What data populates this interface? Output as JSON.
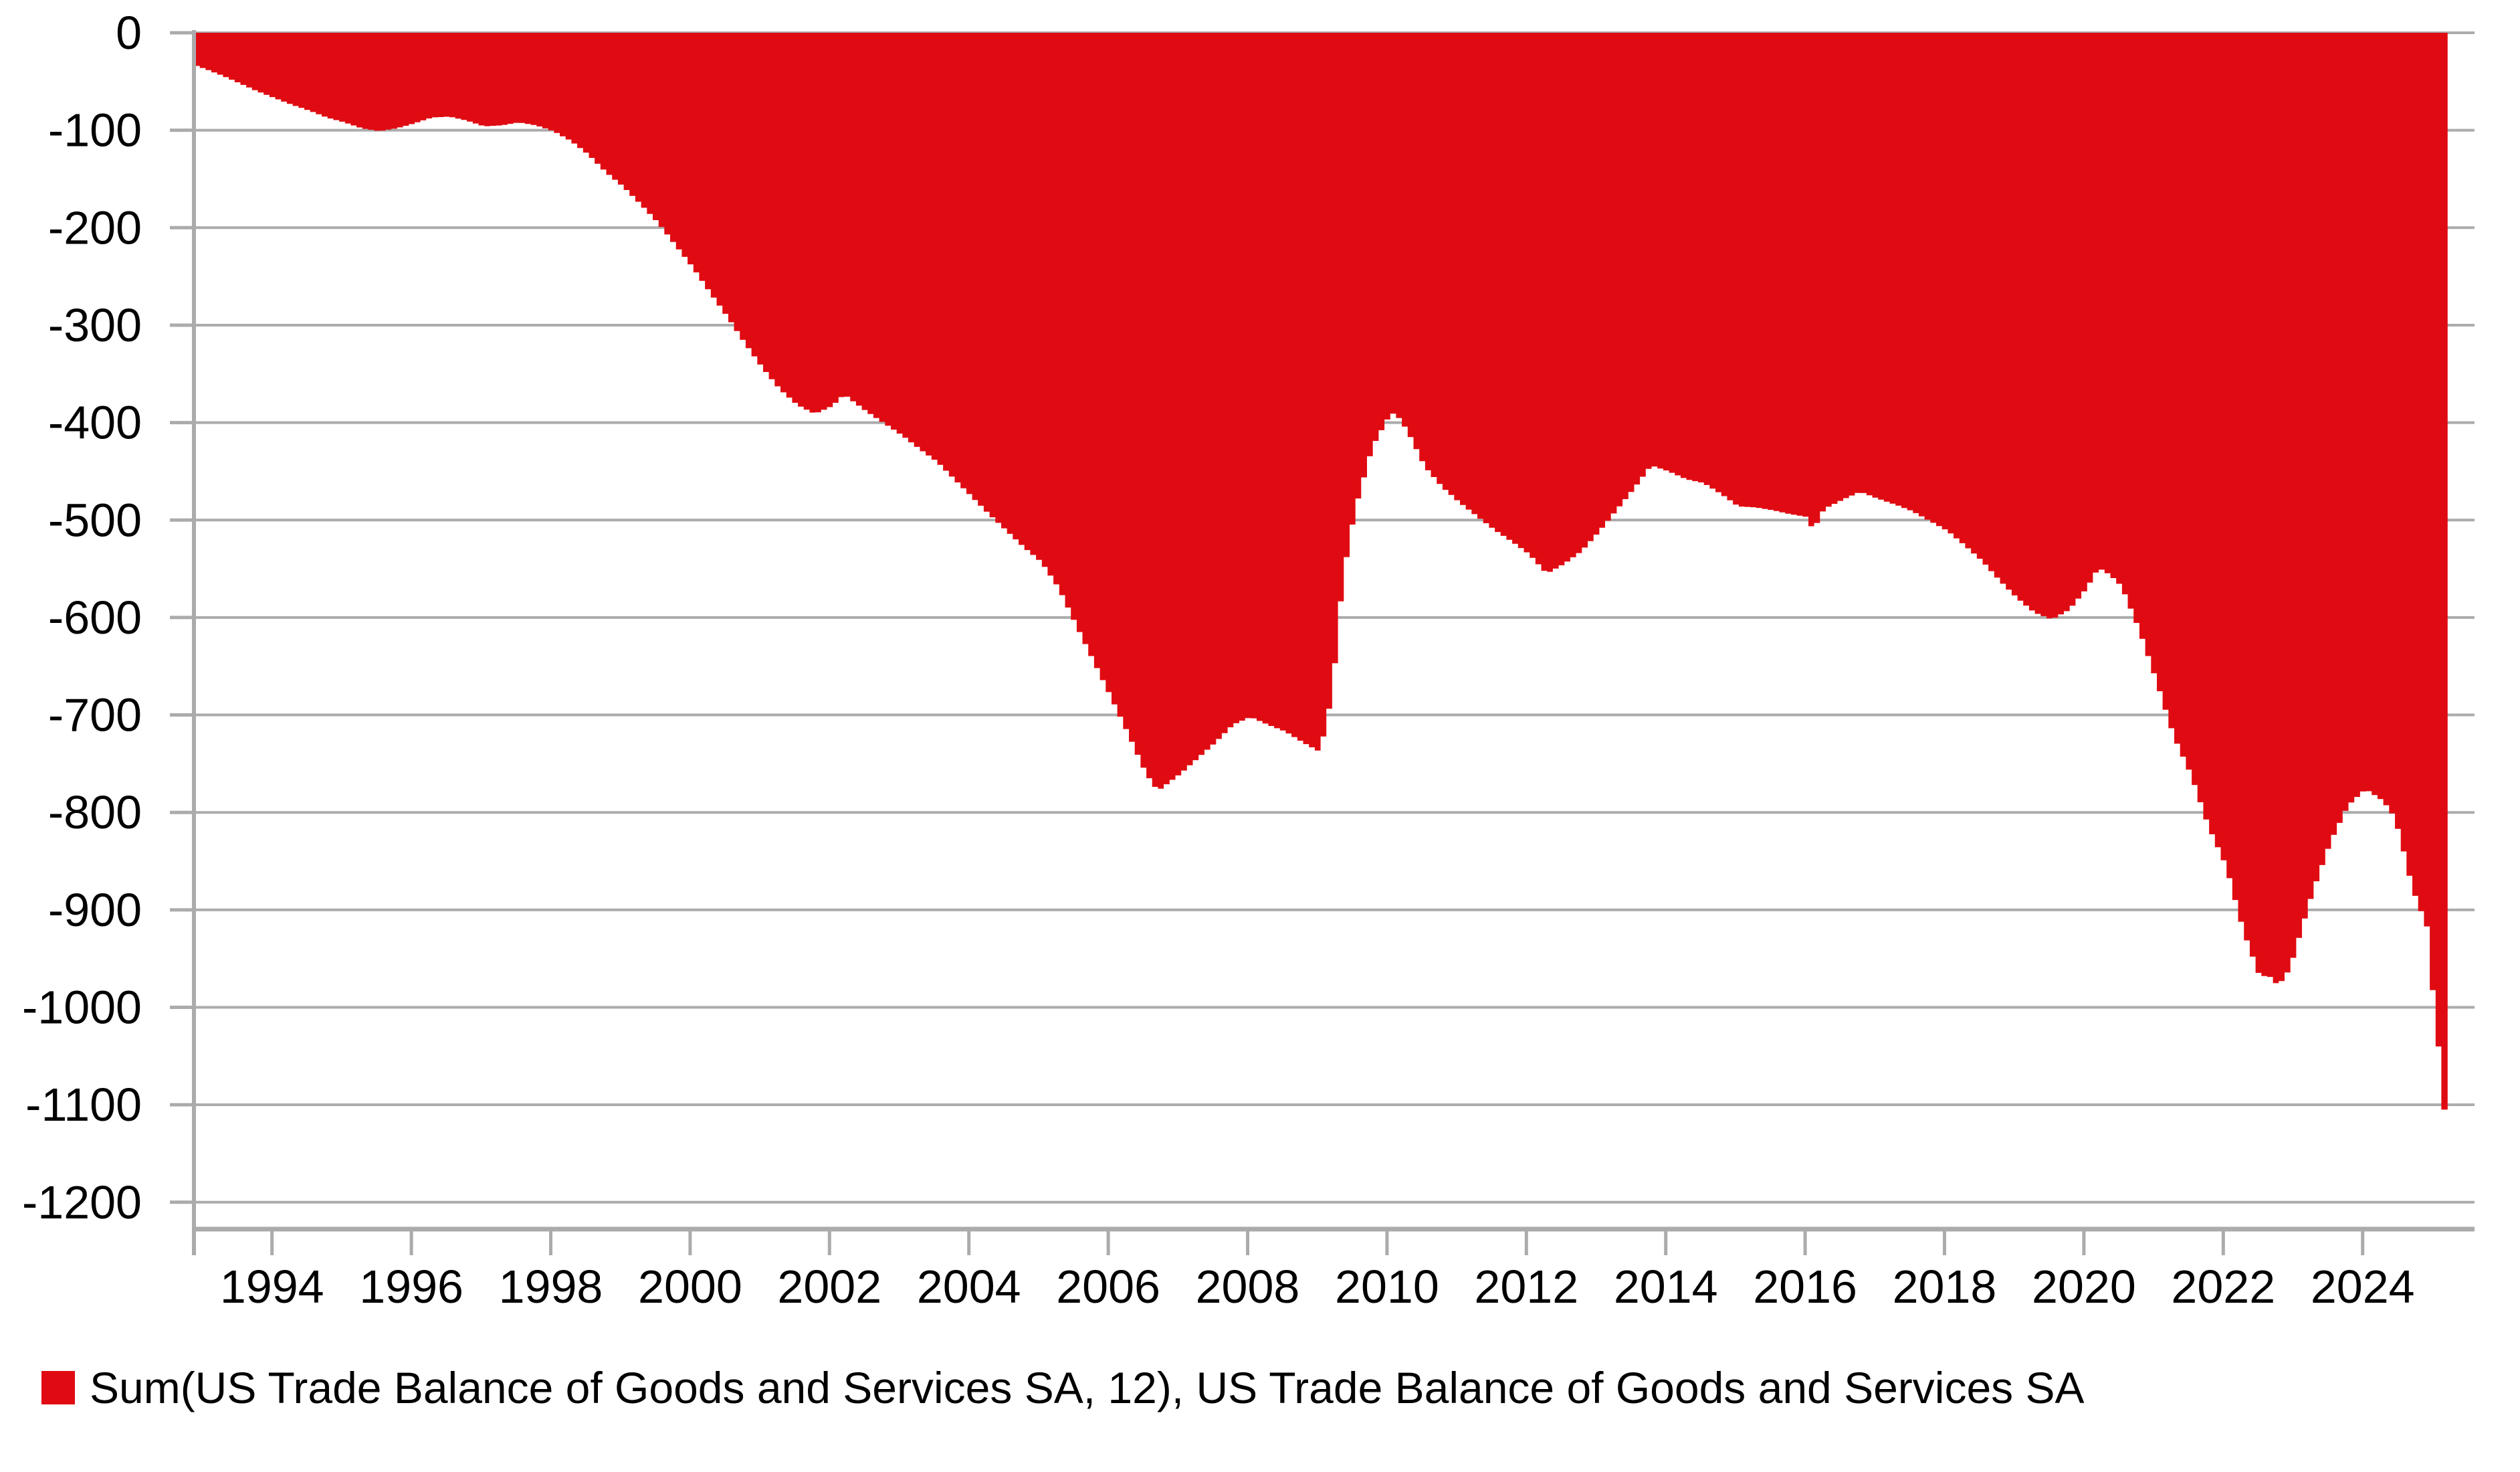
{
  "legend": {
    "label": "Sum(US Trade Balance of Goods and Services SA, 12), US Trade Balance of Goods and Services SA",
    "swatch_color": "#e00b12"
  },
  "colors": {
    "area_fill": "#e00b12",
    "grid_line": "#ababab",
    "axis_line": "#ababab",
    "text": "#000000",
    "background": "#ffffff"
  },
  "chart_data": {
    "type": "area",
    "title": "",
    "xlabel": "",
    "ylabel": "",
    "series_name": "Sum(US Trade Balance of Goods and Services SA, 12), US Trade Balance of Goods and Services SA",
    "legend_position": "bottom-left",
    "grid": true,
    "baseline": 0,
    "x_ticks": [
      1994,
      1996,
      1998,
      2000,
      2002,
      2004,
      2006,
      2008,
      2010,
      2012,
      2014,
      2016,
      2018,
      2020,
      2022,
      2024
    ],
    "y_ticks": [
      0,
      -100,
      -200,
      -300,
      -400,
      -500,
      -600,
      -700,
      -800,
      -900,
      -1000,
      -1100,
      -1200
    ],
    "xlim": [
      1992.88,
      2025.6
    ],
    "ylim": [
      -1228,
      0
    ],
    "x_unit": "year (monthly observations)",
    "t_end": 2025.22,
    "points": [
      [
        1992.88,
        -34
      ],
      [
        1993.0,
        -37
      ],
      [
        1993.25,
        -44
      ],
      [
        1993.5,
        -52
      ],
      [
        1993.75,
        -60
      ],
      [
        1994.0,
        -67
      ],
      [
        1994.25,
        -74
      ],
      [
        1994.5,
        -80
      ],
      [
        1994.75,
        -87
      ],
      [
        1995.0,
        -92
      ],
      [
        1995.25,
        -98
      ],
      [
        1995.5,
        -101
      ],
      [
        1995.75,
        -98
      ],
      [
        1996.0,
        -93
      ],
      [
        1996.25,
        -87
      ],
      [
        1996.5,
        -86
      ],
      [
        1996.75,
        -90
      ],
      [
        1997.0,
        -96
      ],
      [
        1997.25,
        -95
      ],
      [
        1997.5,
        -92
      ],
      [
        1997.75,
        -95
      ],
      [
        1998.0,
        -101
      ],
      [
        1998.25,
        -111
      ],
      [
        1998.5,
        -125
      ],
      [
        1998.75,
        -143
      ],
      [
        1999.0,
        -158
      ],
      [
        1999.25,
        -176
      ],
      [
        1999.5,
        -195
      ],
      [
        1999.75,
        -218
      ],
      [
        2000.0,
        -241
      ],
      [
        2000.25,
        -267
      ],
      [
        2000.5,
        -292
      ],
      [
        2000.75,
        -319
      ],
      [
        2001.0,
        -344
      ],
      [
        2001.25,
        -366
      ],
      [
        2001.5,
        -382
      ],
      [
        2001.75,
        -391
      ],
      [
        2002.0,
        -383
      ],
      [
        2002.17,
        -371
      ],
      [
        2002.33,
        -380
      ],
      [
        2002.5,
        -389
      ],
      [
        2002.75,
        -401
      ],
      [
        2003.0,
        -413
      ],
      [
        2003.25,
        -427
      ],
      [
        2003.5,
        -440
      ],
      [
        2003.75,
        -458
      ],
      [
        2004.0,
        -476
      ],
      [
        2004.25,
        -494
      ],
      [
        2004.5,
        -511
      ],
      [
        2004.75,
        -528
      ],
      [
        2005.0,
        -543
      ],
      [
        2005.25,
        -570
      ],
      [
        2005.5,
        -608
      ],
      [
        2005.75,
        -645
      ],
      [
        2006.0,
        -682
      ],
      [
        2006.25,
        -720
      ],
      [
        2006.5,
        -760
      ],
      [
        2006.67,
        -778
      ],
      [
        2007.0,
        -760
      ],
      [
        2007.25,
        -744
      ],
      [
        2007.5,
        -728
      ],
      [
        2007.75,
        -710
      ],
      [
        2008.0,
        -702
      ],
      [
        2008.25,
        -710
      ],
      [
        2008.5,
        -717
      ],
      [
        2008.75,
        -728
      ],
      [
        2009.0,
        -738
      ],
      [
        2009.17,
        -680
      ],
      [
        2009.33,
        -558
      ],
      [
        2009.5,
        -490
      ],
      [
        2009.75,
        -425
      ],
      [
        2010.0,
        -392
      ],
      [
        2010.08,
        -390
      ],
      [
        2010.25,
        -408
      ],
      [
        2010.5,
        -445
      ],
      [
        2010.75,
        -466
      ],
      [
        2011.0,
        -482
      ],
      [
        2011.25,
        -496
      ],
      [
        2011.5,
        -510
      ],
      [
        2011.75,
        -522
      ],
      [
        2012.0,
        -535
      ],
      [
        2012.25,
        -555
      ],
      [
        2012.5,
        -545
      ],
      [
        2012.75,
        -532
      ],
      [
        2013.0,
        -512
      ],
      [
        2013.25,
        -490
      ],
      [
        2013.5,
        -468
      ],
      [
        2013.75,
        -444
      ],
      [
        2014.0,
        -450
      ],
      [
        2014.25,
        -458
      ],
      [
        2014.5,
        -462
      ],
      [
        2014.75,
        -473
      ],
      [
        2015.0,
        -486
      ],
      [
        2015.25,
        -487
      ],
      [
        2015.5,
        -490
      ],
      [
        2015.75,
        -494
      ],
      [
        2016.0,
        -497
      ],
      [
        2016.08,
        -513
      ],
      [
        2016.17,
        -495
      ],
      [
        2016.25,
        -488
      ],
      [
        2016.5,
        -479
      ],
      [
        2016.75,
        -471
      ],
      [
        2017.0,
        -478
      ],
      [
        2017.25,
        -484
      ],
      [
        2017.5,
        -491
      ],
      [
        2017.75,
        -501
      ],
      [
        2018.0,
        -511
      ],
      [
        2018.25,
        -526
      ],
      [
        2018.5,
        -542
      ],
      [
        2018.75,
        -562
      ],
      [
        2019.0,
        -580
      ],
      [
        2019.25,
        -595
      ],
      [
        2019.5,
        -602
      ],
      [
        2019.75,
        -592
      ],
      [
        2020.0,
        -570
      ],
      [
        2020.17,
        -549
      ],
      [
        2020.33,
        -556
      ],
      [
        2020.5,
        -568
      ],
      [
        2020.75,
        -612
      ],
      [
        2021.0,
        -665
      ],
      [
        2021.25,
        -722
      ],
      [
        2021.5,
        -762
      ],
      [
        2021.75,
        -815
      ],
      [
        2022.0,
        -855
      ],
      [
        2022.25,
        -922
      ],
      [
        2022.5,
        -972
      ],
      [
        2022.58,
        -965
      ],
      [
        2022.75,
        -978
      ],
      [
        2022.92,
        -960
      ],
      [
        2023.0,
        -940
      ],
      [
        2023.25,
        -880
      ],
      [
        2023.5,
        -830
      ],
      [
        2023.75,
        -793
      ],
      [
        2024.0,
        -776
      ],
      [
        2024.25,
        -788
      ],
      [
        2024.42,
        -805
      ],
      [
        2024.54,
        -838
      ],
      [
        2024.63,
        -865
      ],
      [
        2024.71,
        -885
      ],
      [
        2024.79,
        -900
      ],
      [
        2024.88,
        -917
      ],
      [
        2024.96,
        -980
      ],
      [
        2025.04,
        -1035
      ],
      [
        2025.13,
        -1105
      ]
    ]
  }
}
